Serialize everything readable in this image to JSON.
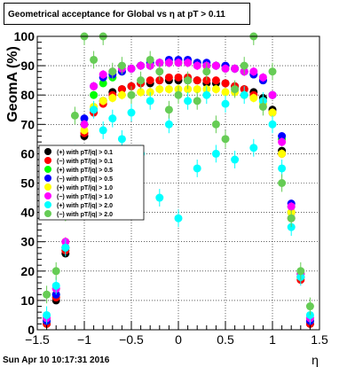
{
  "title": "Geometrical acceptance for Global vs   η at pT > 0.11",
  "date_stamp": "Sun Apr 10 10:17:31 2016",
  "chart_data": {
    "type": "scatter",
    "xlabel": "η",
    "ylabel": "GeomA (%)",
    "xlim": [
      -1.5,
      1.5
    ],
    "ylim": [
      0,
      100
    ],
    "xticks": [
      "−1.5",
      "−1",
      "−0.5",
      "0",
      "0.5",
      "1",
      "1.5"
    ],
    "yticks": [
      "0",
      "10",
      "20",
      "30",
      "40",
      "50",
      "60",
      "70",
      "80",
      "90",
      "100"
    ],
    "grid": true,
    "legend_position": "middle-left",
    "series": [
      {
        "name": "(+) with pT/|q| > 0.1",
        "color": "#000000",
        "x": [
          -1.4,
          -1.3,
          -1.2,
          -1.1,
          -1.0,
          -0.9,
          -0.8,
          -0.7,
          -0.6,
          -0.5,
          -0.4,
          -0.3,
          -0.2,
          -0.1,
          0.0,
          0.1,
          0.2,
          0.3,
          0.4,
          0.5,
          0.6,
          0.7,
          0.8,
          0.9,
          1.0,
          1.1,
          1.2,
          1.3,
          1.4
        ],
        "y": [
          2,
          10,
          26,
          50,
          66,
          75,
          78,
          81,
          82,
          83,
          84,
          84,
          85,
          85,
          85,
          85,
          85,
          84,
          84,
          84,
          83,
          82,
          81,
          79,
          75,
          61,
          40,
          18,
          2
        ]
      },
      {
        "name": "(−) with pT/|q| > 0.1",
        "color": "#ff0000",
        "x": [
          -1.4,
          -1.3,
          -1.2,
          -1.1,
          -1.0,
          -0.9,
          -0.8,
          -0.7,
          -0.6,
          -0.5,
          -0.4,
          -0.3,
          -0.2,
          -0.1,
          0.0,
          0.1,
          0.2,
          0.3,
          0.4,
          0.5,
          0.6,
          0.7,
          0.8,
          0.9,
          1.0,
          1.1,
          1.2,
          1.3,
          1.4
        ],
        "y": [
          2,
          11,
          27,
          52,
          67,
          74,
          77,
          80,
          82,
          83,
          84,
          85,
          85,
          86,
          86,
          86,
          85,
          85,
          85,
          84,
          83,
          82,
          80,
          78,
          74,
          60,
          38,
          17,
          2
        ]
      },
      {
        "name": "(+) with pT/|q| > 0.5",
        "color": "#00ff00",
        "x": [
          -1.4,
          -1.3,
          -1.2,
          -1.1,
          -1.0,
          -0.9,
          -0.8,
          -0.7,
          -0.6,
          -0.5,
          -0.4,
          -0.3,
          -0.2,
          -0.1,
          0.0,
          0.1,
          0.2,
          0.3,
          0.4,
          0.5,
          0.6,
          0.7,
          0.8,
          0.9,
          1.0,
          1.1,
          1.2,
          1.3,
          1.4
        ],
        "y": [
          3,
          12,
          28,
          55,
          70,
          80,
          84,
          86,
          88,
          89,
          90,
          90,
          91,
          91,
          91,
          91,
          91,
          90,
          90,
          89,
          89,
          88,
          87,
          85,
          80,
          65,
          42,
          18,
          3
        ]
      },
      {
        "name": "(−) with pT/|q| > 0.5",
        "color": "#0000ff",
        "x": [
          -1.4,
          -1.3,
          -1.2,
          -1.1,
          -1.0,
          -0.9,
          -0.8,
          -0.7,
          -0.6,
          -0.5,
          -0.4,
          -0.3,
          -0.2,
          -0.1,
          0.0,
          0.1,
          0.2,
          0.3,
          0.4,
          0.5,
          0.6,
          0.7,
          0.8,
          0.9,
          1.0,
          1.1,
          1.2,
          1.3,
          1.4
        ],
        "y": [
          3,
          12,
          28,
          56,
          72,
          83,
          86,
          87,
          88,
          89,
          90,
          91,
          91,
          92,
          92,
          92,
          91,
          91,
          90,
          90,
          89,
          88,
          87,
          85,
          80,
          66,
          43,
          19,
          3
        ]
      },
      {
        "name": "(+) with pT/|q| > 1.0",
        "color": "#ffff00",
        "x": [
          -1.4,
          -1.3,
          -1.2,
          -1.1,
          -1.0,
          -0.9,
          -0.8,
          -0.7,
          -0.6,
          -0.5,
          -0.4,
          -0.3,
          -0.2,
          -0.1,
          0.0,
          0.1,
          0.2,
          0.3,
          0.4,
          0.5,
          0.6,
          0.7,
          0.8,
          0.9,
          1.0,
          1.1,
          1.2,
          1.3,
          1.4
        ],
        "y": [
          4,
          14,
          30,
          54,
          68,
          76,
          78,
          79,
          80,
          80,
          81,
          81,
          82,
          82,
          82,
          82,
          82,
          82,
          82,
          81,
          81,
          80,
          79,
          77,
          74,
          60,
          40,
          19,
          4
        ]
      },
      {
        "name": "(−) with pT/|q| > 1.0",
        "color": "#ff00ff",
        "x": [
          -1.4,
          -1.3,
          -1.2,
          -1.1,
          -1.0,
          -0.9,
          -0.8,
          -0.7,
          -0.6,
          -0.5,
          -0.4,
          -0.3,
          -0.2,
          -0.1,
          0.0,
          0.1,
          0.2,
          0.3,
          0.4,
          0.5,
          0.6,
          0.7,
          0.8,
          0.9,
          1.0,
          1.1,
          1.2,
          1.3,
          1.4
        ],
        "y": [
          4,
          14,
          30,
          56,
          70,
          83,
          87,
          88,
          89,
          89,
          90,
          90,
          91,
          91,
          91,
          91,
          90,
          90,
          90,
          89,
          89,
          88,
          88,
          86,
          80,
          64,
          42,
          19,
          4
        ]
      },
      {
        "name": "(+) with pT/|q| > 2.0",
        "color": "#00ffff",
        "x": [
          -1.4,
          -1.3,
          -1.2,
          -1.1,
          -1.0,
          -0.9,
          -0.8,
          -0.7,
          -0.6,
          -0.5,
          -0.4,
          -0.3,
          -0.2,
          -0.1,
          0.0,
          0.1,
          0.2,
          0.3,
          0.4,
          0.5,
          0.6,
          0.7,
          0.8,
          0.9,
          1.0,
          1.1,
          1.2,
          1.3,
          1.4
        ],
        "y": [
          5,
          15,
          28,
          60,
          55,
          75,
          68,
          72,
          65,
          74,
          60,
          78,
          45,
          70,
          38,
          78,
          55,
          80,
          60,
          77,
          58,
          80,
          62,
          78,
          70,
          55,
          35,
          18,
          5
        ]
      },
      {
        "name": "(−) with pT/|q| > 2.0",
        "color": "#66cc55",
        "x": [
          -1.4,
          -1.3,
          -1.2,
          -1.1,
          -1.0,
          -0.9,
          -0.8,
          -0.7,
          -0.6,
          -0.5,
          -0.4,
          -0.3,
          -0.2,
          -0.1,
          0.0,
          0.1,
          0.2,
          0.3,
          0.4,
          0.5,
          0.6,
          0.7,
          0.8,
          0.9,
          1.0,
          1.1,
          1.2,
          1.3,
          1.4
        ],
        "y": [
          12,
          20,
          40,
          73,
          100,
          92,
          100,
          88,
          90,
          80,
          85,
          92,
          88,
          75,
          80,
          85,
          78,
          88,
          70,
          65,
          82,
          90,
          100,
          76,
          88,
          50,
          38,
          20,
          8
        ]
      }
    ]
  }
}
